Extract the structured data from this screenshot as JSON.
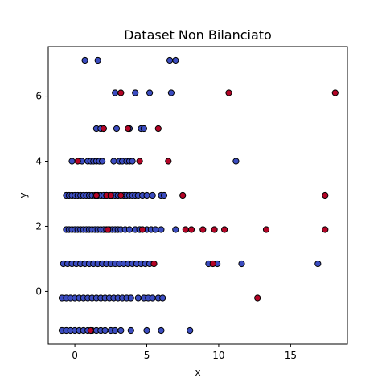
{
  "chart_data": {
    "type": "scatter",
    "title": "Dataset Non Bilanciato",
    "xlabel": "x",
    "ylabel": "y",
    "xlim": [
      -1.85,
      18.95
    ],
    "ylim": [
      -1.62,
      7.52
    ],
    "xticks": [
      0,
      5,
      10,
      15
    ],
    "yticks": [
      0,
      2,
      4,
      6
    ],
    "grid": false,
    "colors": {
      "majority": "#3b4cc0",
      "minority": "#b40426",
      "edge": "#000000"
    },
    "series": [
      {
        "class": "majority",
        "points": [
          [
            0.7,
            7.1
          ],
          [
            1.6,
            7.1
          ],
          [
            6.6,
            7.1
          ],
          [
            7.0,
            7.1
          ],
          [
            2.8,
            6.1
          ],
          [
            4.2,
            6.1
          ],
          [
            5.2,
            6.1
          ],
          [
            6.7,
            6.1
          ],
          [
            1.5,
            5.0
          ],
          [
            1.8,
            5.0
          ],
          [
            2.9,
            5.0
          ],
          [
            3.8,
            5.0
          ],
          [
            4.6,
            5.0
          ],
          [
            4.8,
            5.0
          ],
          [
            -0.2,
            4.0
          ],
          [
            0.5,
            4.0
          ],
          [
            0.9,
            4.0
          ],
          [
            1.1,
            4.0
          ],
          [
            1.3,
            4.0
          ],
          [
            1.5,
            4.0
          ],
          [
            1.7,
            4.0
          ],
          [
            1.9,
            4.0
          ],
          [
            2.7,
            4.0
          ],
          [
            3.1,
            4.0
          ],
          [
            3.3,
            4.0
          ],
          [
            3.6,
            4.0
          ],
          [
            3.8,
            4.0
          ],
          [
            4.0,
            4.0
          ],
          [
            11.2,
            4.0
          ],
          [
            -0.6,
            2.95
          ],
          [
            -0.4,
            2.95
          ],
          [
            -0.2,
            2.95
          ],
          [
            0.0,
            2.95
          ],
          [
            0.2,
            2.95
          ],
          [
            0.4,
            2.95
          ],
          [
            0.6,
            2.95
          ],
          [
            0.8,
            2.95
          ],
          [
            1.0,
            2.95
          ],
          [
            1.2,
            2.95
          ],
          [
            1.4,
            2.95
          ],
          [
            1.6,
            2.95
          ],
          [
            1.8,
            2.95
          ],
          [
            2.0,
            2.95
          ],
          [
            2.2,
            2.95
          ],
          [
            2.4,
            2.95
          ],
          [
            2.6,
            2.95
          ],
          [
            2.8,
            2.95
          ],
          [
            3.0,
            2.95
          ],
          [
            3.4,
            2.95
          ],
          [
            3.6,
            2.95
          ],
          [
            3.8,
            2.95
          ],
          [
            4.0,
            2.95
          ],
          [
            4.2,
            2.95
          ],
          [
            4.4,
            2.95
          ],
          [
            4.7,
            2.95
          ],
          [
            5.0,
            2.95
          ],
          [
            5.4,
            2.95
          ],
          [
            6.0,
            2.95
          ],
          [
            6.2,
            2.95
          ],
          [
            -0.6,
            1.9
          ],
          [
            -0.4,
            1.9
          ],
          [
            -0.2,
            1.9
          ],
          [
            0.0,
            1.9
          ],
          [
            0.2,
            1.9
          ],
          [
            0.4,
            1.9
          ],
          [
            0.6,
            1.9
          ],
          [
            0.8,
            1.9
          ],
          [
            1.0,
            1.9
          ],
          [
            1.2,
            1.9
          ],
          [
            1.4,
            1.9
          ],
          [
            1.6,
            1.9
          ],
          [
            1.8,
            1.9
          ],
          [
            2.0,
            1.9
          ],
          [
            2.2,
            1.9
          ],
          [
            2.4,
            1.9
          ],
          [
            2.6,
            1.9
          ],
          [
            2.8,
            1.9
          ],
          [
            3.0,
            1.9
          ],
          [
            3.2,
            1.9
          ],
          [
            3.5,
            1.9
          ],
          [
            3.8,
            1.9
          ],
          [
            4.2,
            1.9
          ],
          [
            4.5,
            1.9
          ],
          [
            5.0,
            1.9
          ],
          [
            5.3,
            1.9
          ],
          [
            5.6,
            1.9
          ],
          [
            6.0,
            1.9
          ],
          [
            7.0,
            1.9
          ],
          [
            -0.8,
            0.85
          ],
          [
            -0.5,
            0.85
          ],
          [
            -0.2,
            0.85
          ],
          [
            0.1,
            0.85
          ],
          [
            0.4,
            0.85
          ],
          [
            0.7,
            0.85
          ],
          [
            1.0,
            0.85
          ],
          [
            1.3,
            0.85
          ],
          [
            1.6,
            0.85
          ],
          [
            1.9,
            0.85
          ],
          [
            2.2,
            0.85
          ],
          [
            2.5,
            0.85
          ],
          [
            2.8,
            0.85
          ],
          [
            3.1,
            0.85
          ],
          [
            3.4,
            0.85
          ],
          [
            3.7,
            0.85
          ],
          [
            4.0,
            0.85
          ],
          [
            4.3,
            0.85
          ],
          [
            4.6,
            0.85
          ],
          [
            4.9,
            0.85
          ],
          [
            5.2,
            0.85
          ],
          [
            9.3,
            0.85
          ],
          [
            9.9,
            0.85
          ],
          [
            11.6,
            0.85
          ],
          [
            16.9,
            0.85
          ],
          [
            -0.9,
            -0.2
          ],
          [
            -0.6,
            -0.2
          ],
          [
            -0.3,
            -0.2
          ],
          [
            0.0,
            -0.2
          ],
          [
            0.3,
            -0.2
          ],
          [
            0.6,
            -0.2
          ],
          [
            0.9,
            -0.2
          ],
          [
            1.2,
            -0.2
          ],
          [
            1.5,
            -0.2
          ],
          [
            1.8,
            -0.2
          ],
          [
            2.1,
            -0.2
          ],
          [
            2.4,
            -0.2
          ],
          [
            2.7,
            -0.2
          ],
          [
            3.0,
            -0.2
          ],
          [
            3.3,
            -0.2
          ],
          [
            3.6,
            -0.2
          ],
          [
            3.9,
            -0.2
          ],
          [
            4.4,
            -0.2
          ],
          [
            4.8,
            -0.2
          ],
          [
            5.1,
            -0.2
          ],
          [
            5.4,
            -0.2
          ],
          [
            5.8,
            -0.2
          ],
          [
            6.1,
            -0.2
          ],
          [
            -0.9,
            -1.2
          ],
          [
            -0.6,
            -1.2
          ],
          [
            -0.3,
            -1.2
          ],
          [
            0.0,
            -1.2
          ],
          [
            0.3,
            -1.2
          ],
          [
            0.6,
            -1.2
          ],
          [
            0.9,
            -1.2
          ],
          [
            1.2,
            -1.2
          ],
          [
            1.5,
            -1.2
          ],
          [
            1.8,
            -1.2
          ],
          [
            2.1,
            -1.2
          ],
          [
            2.5,
            -1.2
          ],
          [
            2.8,
            -1.2
          ],
          [
            3.2,
            -1.2
          ],
          [
            3.9,
            -1.2
          ],
          [
            5.0,
            -1.2
          ],
          [
            6.0,
            -1.2
          ],
          [
            8.0,
            -1.2
          ]
        ]
      },
      {
        "class": "minority",
        "points": [
          [
            3.2,
            6.1
          ],
          [
            10.7,
            6.1
          ],
          [
            18.1,
            6.1
          ],
          [
            2.0,
            5.0
          ],
          [
            3.7,
            5.0
          ],
          [
            5.8,
            5.0
          ],
          [
            0.2,
            4.0
          ],
          [
            4.5,
            4.0
          ],
          [
            6.5,
            4.0
          ],
          [
            1.5,
            2.95
          ],
          [
            2.2,
            2.95
          ],
          [
            2.5,
            2.95
          ],
          [
            3.2,
            2.95
          ],
          [
            7.5,
            2.95
          ],
          [
            17.4,
            2.95
          ],
          [
            2.3,
            1.9
          ],
          [
            4.7,
            1.9
          ],
          [
            7.7,
            1.9
          ],
          [
            8.1,
            1.9
          ],
          [
            8.9,
            1.9
          ],
          [
            9.7,
            1.9
          ],
          [
            10.4,
            1.9
          ],
          [
            13.3,
            1.9
          ],
          [
            17.4,
            1.9
          ],
          [
            5.5,
            0.85
          ],
          [
            9.6,
            0.85
          ],
          [
            12.7,
            -0.2
          ],
          [
            1.1,
            -1.2
          ]
        ]
      }
    ]
  }
}
